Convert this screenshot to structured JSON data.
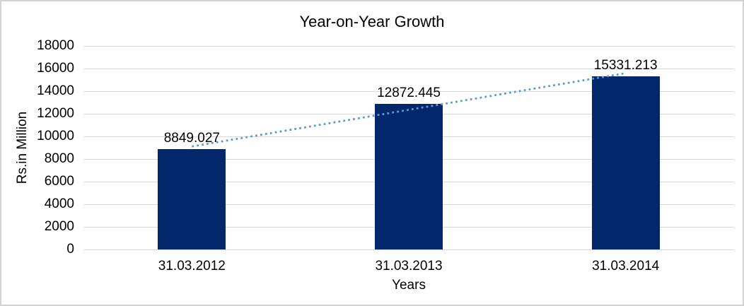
{
  "chart_data": {
    "type": "bar",
    "title": "Year-on-Year Growth",
    "xlabel": "Years",
    "ylabel": "Rs.in Million",
    "categories": [
      "31.03.2012",
      "31.03.2013",
      "31.03.2014"
    ],
    "values": [
      8849.027,
      12872.445,
      15331.213
    ],
    "data_labels": [
      "8849.027",
      "12872.445",
      "15331.213"
    ],
    "yticks": [
      0,
      2000,
      4000,
      6000,
      8000,
      10000,
      12000,
      14000,
      16000,
      18000
    ],
    "ylim": [
      0,
      18000
    ],
    "grid": "horizontal-only",
    "legend": "none",
    "trendline": {
      "type": "linear",
      "style": "dotted"
    }
  },
  "colors": {
    "bar": "#02276b",
    "trendline": "#5b9bd5",
    "gridline": "#d9d9d9",
    "frame_border": "#d3d3d3",
    "text": "#000000"
  }
}
